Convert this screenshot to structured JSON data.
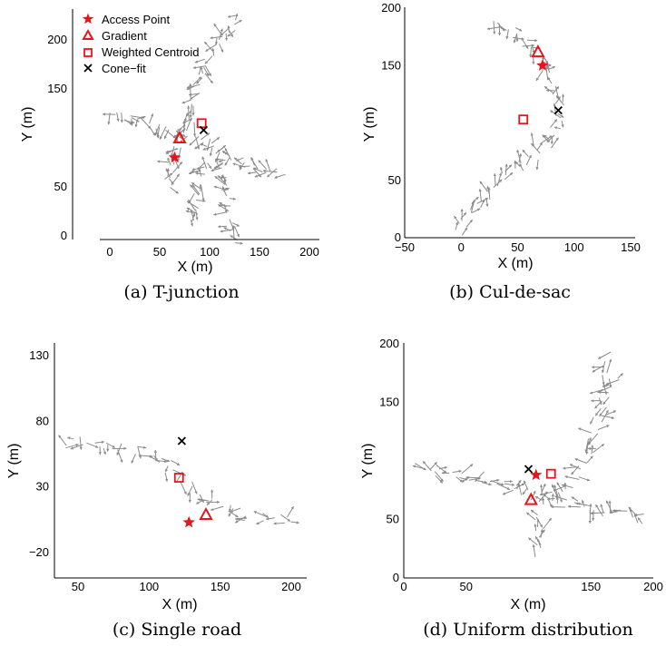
{
  "legend": {
    "access_point": "Access Point",
    "gradient": "Gradient",
    "weighted_centroid": "Weighted Centroid",
    "cone_fit": "Cone−fit"
  },
  "colors": {
    "arrow": "#8a8a8a",
    "marker_red": "#e8141b",
    "marker_black": "#000000"
  },
  "chart_data": [
    {
      "id": "a",
      "type": "scatter",
      "caption": "(a) T-junction",
      "xlabel": "X (m)",
      "ylabel": "Y (m)",
      "xlim": [
        -30,
        210
      ],
      "ylim": [
        -5,
        225
      ],
      "xticks": [
        0,
        50,
        100,
        150,
        200
      ],
      "xtick_labels": [
        "0",
        "50",
        "100",
        "150",
        "200"
      ],
      "yticks": [
        0,
        50,
        150,
        200
      ],
      "ytick_labels": [
        "0",
        "50",
        "150",
        "200"
      ],
      "legend_position": "top-left",
      "access_point": [
        65,
        80
      ],
      "gradient": [
        70,
        100
      ],
      "weighted_centroid": [
        92,
        115
      ],
      "cone_fit": [
        94,
        108
      ],
      "road_paths": [
        [
          [
            0,
            125
          ],
          [
            30,
            118
          ],
          [
            58,
            110
          ],
          [
            78,
            105
          ]
        ],
        [
          [
            78,
            105
          ],
          [
            82,
            130
          ],
          [
            92,
            170
          ],
          [
            112,
            200
          ],
          [
            130,
            225
          ]
        ],
        [
          [
            78,
            105
          ],
          [
            102,
            92
          ],
          [
            122,
            80
          ],
          [
            150,
            68
          ],
          [
            175,
            64
          ]
        ],
        [
          [
            70,
            95
          ],
          [
            62,
            70
          ],
          [
            58,
            45
          ]
        ],
        [
          [
            110,
            85
          ],
          [
            115,
            55
          ],
          [
            118,
            25
          ],
          [
            122,
            0
          ],
          [
            130,
            -5
          ]
        ],
        [
          [
            95,
            80
          ],
          [
            88,
            40
          ],
          [
            82,
            10
          ]
        ]
      ]
    },
    {
      "id": "b",
      "type": "scatter",
      "caption": "(b) Cul-de-sac",
      "xlabel": "X (m)",
      "ylabel": "Y (m)",
      "xlim": [
        -50,
        150
      ],
      "ylim": [
        0,
        200
      ],
      "xticks": [
        -50,
        0,
        50,
        100,
        150
      ],
      "xtick_labels": [
        "−50",
        "0",
        "50",
        "100",
        "150"
      ],
      "yticks": [
        0,
        50,
        150,
        200
      ],
      "ytick_labels": [
        "0",
        "50",
        "150",
        "200"
      ],
      "access_point": [
        72,
        150
      ],
      "gradient": [
        68,
        162
      ],
      "weighted_centroid": [
        55,
        103
      ],
      "cone_fit": [
        86,
        111
      ],
      "road_paths": [
        [
          [
            28,
            195
          ],
          [
            45,
            180
          ],
          [
            60,
            165
          ],
          [
            72,
            152
          ],
          [
            82,
            135
          ],
          [
            88,
            115
          ],
          [
            85,
            95
          ],
          [
            75,
            80
          ],
          [
            60,
            68
          ],
          [
            42,
            55
          ],
          [
            25,
            40
          ],
          [
            10,
            25
          ],
          [
            0,
            10
          ],
          [
            -2,
            2
          ]
        ]
      ]
    },
    {
      "id": "c",
      "type": "scatter",
      "caption": "(c) Single road",
      "xlabel": "X (m)",
      "ylabel": "Y (m)",
      "xlim": [
        35,
        210
      ],
      "ylim": [
        -35,
        135
      ],
      "xticks": [
        50,
        100,
        150,
        200
      ],
      "xtick_labels": [
        "50",
        "100",
        "150",
        "200"
      ],
      "yticks": [
        -20,
        30,
        80,
        130
      ],
      "ytick_labels": [
        "−20",
        "30",
        "80",
        "130"
      ],
      "access_point": [
        128,
        3
      ],
      "gradient": [
        140,
        9
      ],
      "weighted_centroid": [
        121,
        37
      ],
      "cone_fit": [
        123,
        65
      ],
      "road_paths": [
        [
          [
            40,
            62
          ],
          [
            60,
            65
          ],
          [
            80,
            62
          ],
          [
            100,
            55
          ],
          [
            115,
            45
          ],
          [
            125,
            35
          ],
          [
            135,
            25
          ],
          [
            150,
            15
          ],
          [
            170,
            8
          ],
          [
            190,
            5
          ],
          [
            200,
            3
          ]
        ]
      ]
    },
    {
      "id": "d",
      "type": "scatter",
      "caption": "(d) Uniform distribution",
      "xlabel": "X (m)",
      "ylabel": "Y (m)",
      "xlim": [
        0,
        200
      ],
      "ylim": [
        0,
        200
      ],
      "xticks": [
        0,
        50,
        150,
        200
      ],
      "xtick_labels": [
        "0",
        "50",
        "150",
        "200"
      ],
      "yticks": [
        0,
        50,
        150,
        200
      ],
      "ytick_labels": [
        "0",
        "50",
        "150",
        "200"
      ],
      "access_point": [
        106,
        88
      ],
      "gradient": [
        102,
        67
      ],
      "weighted_centroid": [
        118,
        89
      ],
      "cone_fit": [
        100,
        93
      ],
      "road_paths": [
        [
          [
            10,
            95
          ],
          [
            40,
            90
          ],
          [
            70,
            85
          ],
          [
            95,
            75
          ],
          [
            110,
            68
          ]
        ],
        [
          [
            110,
            68
          ],
          [
            130,
            75
          ],
          [
            145,
            100
          ],
          [
            155,
            130
          ],
          [
            162,
            160
          ],
          [
            165,
            190
          ]
        ],
        [
          [
            110,
            68
          ],
          [
            135,
            62
          ],
          [
            165,
            55
          ],
          [
            195,
            50
          ]
        ],
        [
          [
            110,
            68
          ],
          [
            108,
            45
          ],
          [
            105,
            20
          ]
        ],
        [
          [
            160,
            160
          ],
          [
            172,
            175
          ]
        ]
      ]
    }
  ]
}
